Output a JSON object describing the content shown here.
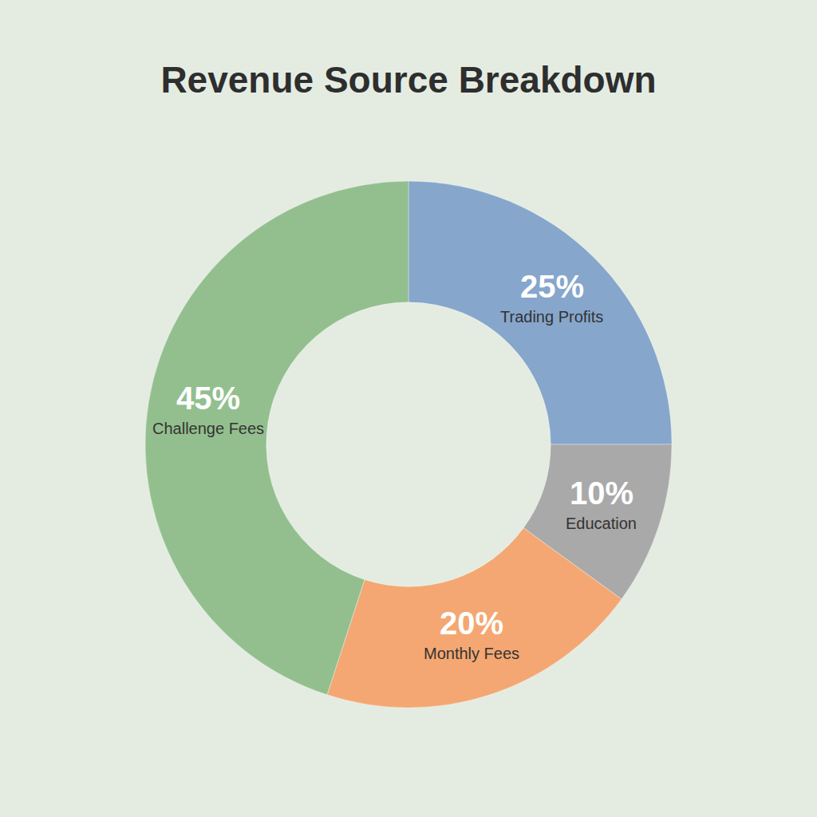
{
  "chart_data": {
    "type": "pie",
    "title": "Revenue Source Breakdown",
    "categories": [
      "Trading Profits",
      "Education",
      "Monthly Fees",
      "Challenge Fees"
    ],
    "values": [
      25,
      10,
      20,
      45
    ],
    "value_labels": [
      "25%",
      "10%",
      "20%",
      "45%"
    ],
    "colors": [
      "#86a6cc",
      "#a9a9a9",
      "#f4a772",
      "#93bf8f"
    ],
    "data_labels": true
  }
}
